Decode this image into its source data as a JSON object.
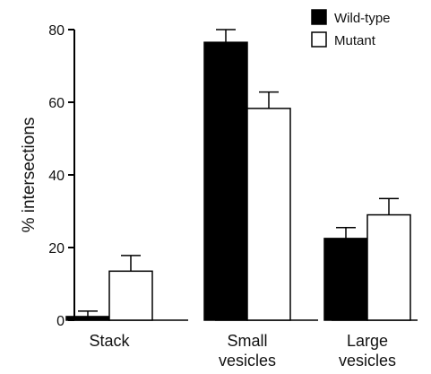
{
  "chart_data": {
    "type": "bar",
    "ylabel": "% intersections",
    "xlabel": "",
    "ylim": [
      0,
      80
    ],
    "yticks": [
      0,
      20,
      40,
      60,
      80
    ],
    "grid": false,
    "legend_position": "top-right",
    "categories": [
      [
        "Stack"
      ],
      [
        "Small",
        "vesicles"
      ],
      [
        "Large",
        "vesicles"
      ]
    ],
    "series": [
      {
        "name": "Wild-type",
        "values": [
          1,
          76.5,
          22.5
        ],
        "errors": [
          1.5,
          3.5,
          3.0
        ],
        "color": "#000000"
      },
      {
        "name": "Mutant",
        "values": [
          13.5,
          58.3,
          29.0
        ],
        "errors": [
          4.3,
          4.5,
          4.5
        ],
        "color": "#ffffff"
      }
    ]
  }
}
